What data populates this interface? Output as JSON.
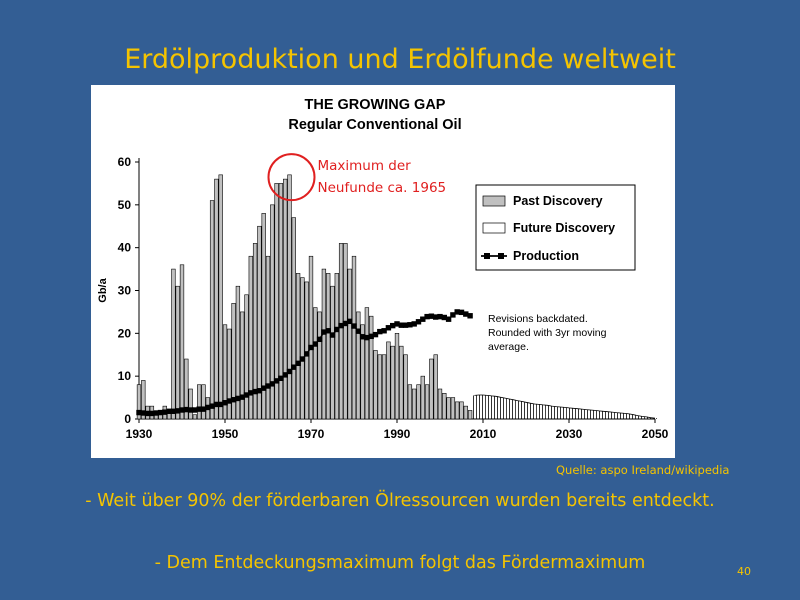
{
  "slide": {
    "title": "Erdölproduktion und Erdölfunde weltweit",
    "source": "Quelle: aspo Ireland/wikipedia",
    "bullets": [
      "- Weit über 90% der förderbaren Ölressourcen wurden bereits entdeckt.",
      "- Dem Entdeckungsmaximum folgt das Fördermaximum"
    ],
    "page_number": "40",
    "annotation_text": [
      "Maximum der",
      "Neufunde ca. 1965"
    ],
    "colors": {
      "background": "#335e94",
      "text_accent": "#f5c400",
      "annotation": "#e02020",
      "bar_fill": "#c0c0c0"
    }
  },
  "chart_data": {
    "type": "bar",
    "title": "THE GROWING GAP",
    "subtitle": "Regular Conventional Oil",
    "ylabel": "Gb/a",
    "xlabel": "",
    "xlim": [
      1930,
      2050
    ],
    "ylim": [
      0,
      60
    ],
    "x_ticks": [
      "1930",
      "1950",
      "1970",
      "1990",
      "2010",
      "2030",
      "2050"
    ],
    "y_ticks": [
      "0",
      "10",
      "20",
      "30",
      "40",
      "50",
      "60"
    ],
    "legend": {
      "placement": "top-right",
      "entries": [
        "Past Discovery",
        "Future Discovery",
        "Production"
      ]
    },
    "note_lines": [
      "Revisions backdated.",
      "Rounded with 3yr moving",
      "average."
    ],
    "annotation": {
      "year": 1965,
      "value": 56
    },
    "series": [
      {
        "name": "Past Discovery",
        "style": "bar",
        "x": [
          1930,
          1931,
          1932,
          1933,
          1934,
          1935,
          1936,
          1937,
          1938,
          1939,
          1940,
          1941,
          1942,
          1943,
          1944,
          1945,
          1946,
          1947,
          1948,
          1949,
          1950,
          1951,
          1952,
          1953,
          1954,
          1955,
          1956,
          1957,
          1958,
          1959,
          1960,
          1961,
          1962,
          1963,
          1964,
          1965,
          1966,
          1967,
          1968,
          1969,
          1970,
          1971,
          1972,
          1973,
          1974,
          1975,
          1976,
          1977,
          1978,
          1979,
          1980,
          1981,
          1982,
          1983,
          1984,
          1985,
          1986,
          1987,
          1988,
          1989,
          1990,
          1991,
          1992,
          1993,
          1994,
          1995,
          1996,
          1997,
          1998,
          1999,
          2000,
          2001,
          2002,
          2003,
          2004,
          2005,
          2006,
          2007
        ],
        "values": [
          8,
          9,
          3,
          3,
          1,
          2,
          3,
          2,
          35,
          31,
          36,
          14,
          7,
          1,
          8,
          8,
          5,
          51,
          56,
          57,
          22,
          21,
          27,
          31,
          25,
          29,
          38,
          41,
          45,
          48,
          38,
          50,
          55,
          55,
          56,
          57,
          47,
          34,
          33,
          32,
          38,
          26,
          25,
          35,
          34,
          31,
          34,
          41,
          41,
          35,
          38,
          25,
          22,
          26,
          24,
          16,
          15,
          15,
          18,
          17,
          20,
          17,
          15,
          8,
          7,
          8,
          10,
          8,
          14,
          15,
          7,
          6,
          5,
          5,
          4,
          4,
          3,
          2
        ]
      },
      {
        "name": "Future Discovery",
        "style": "hatched-bar",
        "x": [
          2008,
          2009,
          2010,
          2011,
          2012,
          2013,
          2014,
          2015,
          2016,
          2017,
          2018,
          2019,
          2020,
          2021,
          2022,
          2023,
          2024,
          2025,
          2026,
          2027,
          2028,
          2029,
          2030,
          2031,
          2032,
          2033,
          2034,
          2035,
          2036,
          2037,
          2038,
          2039,
          2040,
          2041,
          2042,
          2043,
          2044,
          2045,
          2046,
          2047,
          2048,
          2049,
          2050
        ],
        "values": [
          5.5,
          5.6,
          5.6,
          5.5,
          5.4,
          5.3,
          5.1,
          4.9,
          4.7,
          4.5,
          4.3,
          4.1,
          3.9,
          3.7,
          3.5,
          3.4,
          3.3,
          3.2,
          3.0,
          2.9,
          2.8,
          2.7,
          2.6,
          2.5,
          2.4,
          2.3,
          2.2,
          2.1,
          2.0,
          1.9,
          1.8,
          1.7,
          1.6,
          1.5,
          1.4,
          1.3,
          1.2,
          1.0,
          0.8,
          0.6,
          0.5,
          0.3,
          0.2
        ]
      },
      {
        "name": "Production",
        "style": "line-markers",
        "x": [
          1930,
          1931,
          1932,
          1933,
          1934,
          1935,
          1936,
          1937,
          1938,
          1939,
          1940,
          1941,
          1942,
          1943,
          1944,
          1945,
          1946,
          1947,
          1948,
          1949,
          1950,
          1951,
          1952,
          1953,
          1954,
          1955,
          1956,
          1957,
          1958,
          1959,
          1960,
          1961,
          1962,
          1963,
          1964,
          1965,
          1966,
          1967,
          1968,
          1969,
          1970,
          1971,
          1972,
          1973,
          1974,
          1975,
          1976,
          1977,
          1978,
          1979,
          1980,
          1981,
          1982,
          1983,
          1984,
          1985,
          1986,
          1987,
          1988,
          1989,
          1990,
          1991,
          1992,
          1993,
          1994,
          1995,
          1996,
          1997,
          1998,
          1999,
          2000,
          2001,
          2002,
          2003,
          2004,
          2005,
          2006,
          2007
        ],
        "values": [
          1.5,
          1.4,
          1.3,
          1.3,
          1.4,
          1.5,
          1.6,
          1.8,
          1.8,
          1.9,
          2.1,
          2.2,
          2.1,
          2.1,
          2.3,
          2.3,
          2.7,
          3.0,
          3.4,
          3.4,
          3.8,
          4.2,
          4.5,
          4.8,
          5.1,
          5.6,
          6.1,
          6.4,
          6.6,
          7.2,
          7.7,
          8.2,
          8.9,
          9.5,
          10.3,
          11.1,
          12.1,
          13.0,
          14.0,
          15.2,
          16.7,
          17.5,
          18.6,
          20.3,
          20.6,
          19.6,
          20.9,
          21.8,
          22.3,
          22.8,
          21.7,
          20.5,
          19.2,
          19.0,
          19.3,
          19.7,
          20.4,
          20.6,
          21.3,
          21.8,
          22.2,
          21.9,
          21.9,
          22.0,
          22.2,
          22.7,
          23.3,
          23.9,
          24.0,
          23.8,
          23.9,
          23.7,
          23.3,
          24.3,
          25.0,
          24.9,
          24.5,
          24.1
        ]
      }
    ]
  }
}
